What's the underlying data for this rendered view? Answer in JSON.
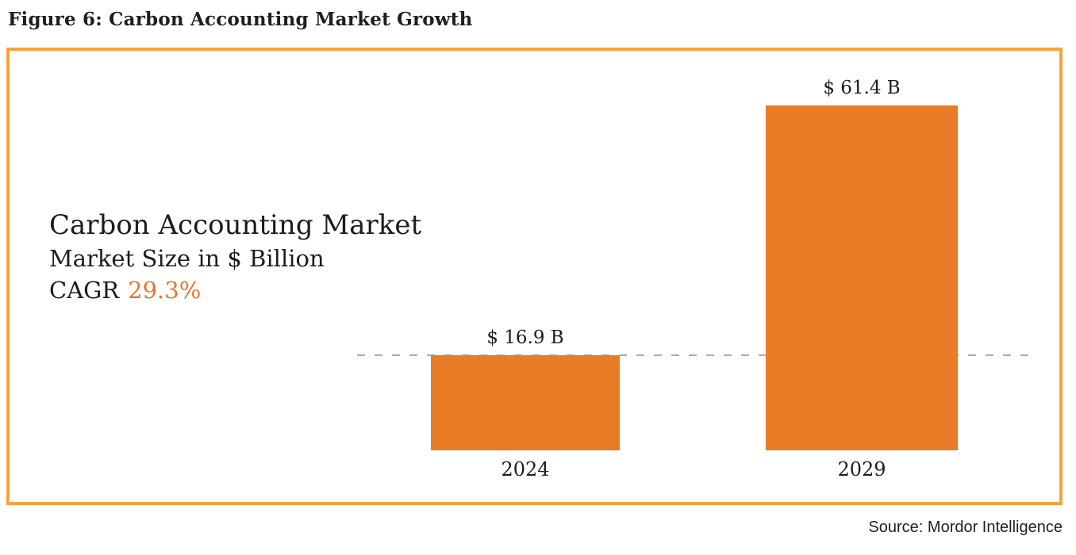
{
  "figure": {
    "heading": "Figure 6: Carbon Accounting Market Growth",
    "source": "Source: Mordor Intelligence"
  },
  "chart_data": {
    "type": "bar",
    "title": "Carbon Accounting Market",
    "subtitle": "Market Size in $ Billion",
    "cagr_label": "CAGR",
    "cagr_value": "29.3%",
    "categories": [
      "2024",
      "2029"
    ],
    "values": [
      16.9,
      61.4
    ],
    "value_labels": [
      "$ 16.9 B",
      "$ 61.4 B"
    ],
    "unit": "$ Billion",
    "ylim": [
      0,
      65
    ],
    "reference_line_at": 16.9,
    "legend": "none",
    "grid": "off"
  },
  "colors": {
    "bar": "#E97C26",
    "frame-border": "#F6A23E",
    "accent-text": "#E8762C",
    "dashed-line": "#ADADAD",
    "ink": "#1C1B20"
  }
}
